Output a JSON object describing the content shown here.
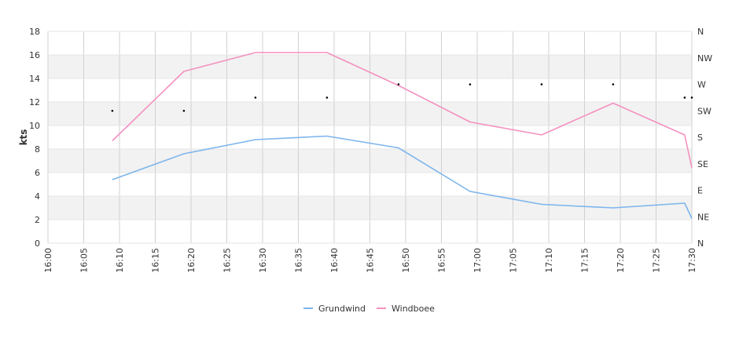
{
  "chart_data": {
    "type": "line",
    "ylabel": "kts",
    "ylim": [
      0,
      18
    ],
    "yticks": [
      0,
      2,
      4,
      6,
      8,
      10,
      12,
      14,
      16,
      18
    ],
    "x_start": "16:00",
    "x_end": "17:30",
    "xticks": [
      "16:00",
      "16:05",
      "16:10",
      "16:15",
      "16:20",
      "16:25",
      "16:30",
      "16:35",
      "16:40",
      "16:45",
      "16:50",
      "16:55",
      "17:00",
      "17:05",
      "17:10",
      "17:15",
      "17:20",
      "17:25",
      "17:30"
    ],
    "right_axis": {
      "labels": [
        "N",
        "NE",
        "E",
        "SE",
        "S",
        "SW",
        "W",
        "NW",
        "N"
      ]
    },
    "grid": true,
    "legend_position": "bottom-center",
    "series": [
      {
        "name": "Grundwind",
        "color": "#7cb5ec",
        "points": [
          [
            "16:09",
            5.4
          ],
          [
            "16:19",
            7.6
          ],
          [
            "16:29",
            8.8
          ],
          [
            "16:39",
            9.1
          ],
          [
            "16:49",
            8.1
          ],
          [
            "16:59",
            4.4
          ],
          [
            "17:09",
            3.3
          ],
          [
            "17:19",
            3.0
          ],
          [
            "17:29",
            3.4
          ],
          [
            "17:30",
            2.1
          ]
        ]
      },
      {
        "name": "Windboee",
        "color": "#f491c0",
        "points": [
          [
            "16:09",
            8.7
          ],
          [
            "16:19",
            14.6
          ],
          [
            "16:29",
            16.2
          ],
          [
            "16:39",
            16.2
          ],
          [
            "16:49",
            13.4
          ],
          [
            "16:59",
            10.3
          ],
          [
            "17:09",
            9.2
          ],
          [
            "17:19",
            11.9
          ],
          [
            "17:29",
            9.2
          ],
          [
            "17:30",
            6.4
          ]
        ]
      }
    ],
    "direction_points": [
      [
        "16:09",
        "SW"
      ],
      [
        "16:19",
        "SW"
      ],
      [
        "16:29",
        "WSW"
      ],
      [
        "16:39",
        "WSW"
      ],
      [
        "16:49",
        "W"
      ],
      [
        "16:59",
        "W"
      ],
      [
        "17:09",
        "W"
      ],
      [
        "17:19",
        "W"
      ],
      [
        "17:29",
        "WSW"
      ],
      [
        "17:30",
        "WSW"
      ]
    ]
  }
}
